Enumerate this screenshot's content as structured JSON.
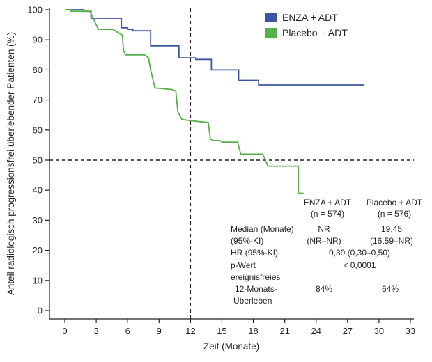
{
  "chart_data": {
    "type": "line",
    "title": "",
    "xlabel": "Zeit (Monate)",
    "ylabel": "Anteil radiologisch progressionsfrei überlebender Patienten (%)",
    "xlim": [
      -1,
      33
    ],
    "ylim": [
      0,
      100
    ],
    "x_ticks": [
      0,
      3,
      6,
      9,
      12,
      15,
      18,
      21,
      24,
      27,
      30,
      33
    ],
    "y_ticks": [
      0,
      10,
      20,
      30,
      40,
      50,
      60,
      70,
      80,
      90,
      100
    ],
    "grid": false,
    "legend_position": "top-right",
    "reference_lines": {
      "x": 12,
      "y": 50
    },
    "series": [
      {
        "name": "ENZA + ADT",
        "color": "#3e55a4",
        "step": true,
        "points": [
          [
            0,
            100
          ],
          [
            1.8,
            100
          ],
          [
            1.8,
            99.5
          ],
          [
            2.5,
            99.5
          ],
          [
            2.5,
            97
          ],
          [
            5.4,
            97
          ],
          [
            5.4,
            94
          ],
          [
            6.0,
            94
          ],
          [
            6.0,
            93.5
          ],
          [
            6.5,
            93.5
          ],
          [
            6.5,
            93
          ],
          [
            8.2,
            93
          ],
          [
            8.2,
            88
          ],
          [
            10.9,
            88
          ],
          [
            10.9,
            84
          ],
          [
            12.5,
            84
          ],
          [
            12.5,
            83.5
          ],
          [
            14.0,
            83.5
          ],
          [
            14.0,
            80
          ],
          [
            16.6,
            80
          ],
          [
            16.6,
            76.5
          ],
          [
            18.5,
            76.5
          ],
          [
            18.5,
            75
          ],
          [
            28.6,
            75
          ]
        ]
      },
      {
        "name": "Placebo + ADT",
        "color": "#56b04a",
        "step": false,
        "points": [
          [
            0,
            100
          ],
          [
            0.6,
            100
          ],
          [
            0.6,
            99.5
          ],
          [
            2.4,
            99.5
          ],
          [
            2.6,
            98
          ],
          [
            3.2,
            93.5
          ],
          [
            4.6,
            93.5
          ],
          [
            5.5,
            91.5
          ],
          [
            5.6,
            86.5
          ],
          [
            5.8,
            85
          ],
          [
            7.6,
            85
          ],
          [
            8.0,
            84
          ],
          [
            8.2,
            80
          ],
          [
            8.6,
            74
          ],
          [
            10.2,
            73.5
          ],
          [
            10.6,
            73
          ],
          [
            10.8,
            66
          ],
          [
            11.2,
            63.5
          ],
          [
            12.3,
            63
          ],
          [
            13.7,
            62.5
          ],
          [
            13.9,
            57
          ],
          [
            14.2,
            56.5
          ],
          [
            14.8,
            56.5
          ],
          [
            15.0,
            56
          ],
          [
            16.5,
            56
          ],
          [
            16.8,
            52
          ],
          [
            18.9,
            52
          ],
          [
            19.4,
            48
          ],
          [
            22.3,
            48
          ],
          [
            22.3,
            39
          ],
          [
            22.8,
            39
          ]
        ]
      }
    ],
    "statistics_table": {
      "col_headers": [
        {
          "name": "ENZA + ADT",
          "n": "(n = 574)"
        },
        {
          "name": "Placebo + ADT",
          "n": "(n = 576)"
        }
      ],
      "rows": [
        {
          "label": "Median (Monate)",
          "enza": "NR",
          "placebo": "19,45"
        },
        {
          "label": "(95%-KI)",
          "enza": "(NR–NR)",
          "placebo": "(16,59–NR)"
        },
        {
          "label": "HR (95%-KI)",
          "merged": "0,39 (0,30–0,50)"
        },
        {
          "label": "p-Wert",
          "merged": "< 0,0001"
        },
        {
          "label": "ereignisfreies",
          "enza": "",
          "placebo": ""
        },
        {
          "label": "12-Monats-",
          "enza": "84%",
          "placebo": "64%"
        },
        {
          "label": "Überleben",
          "enza": "",
          "placebo": ""
        }
      ]
    }
  }
}
